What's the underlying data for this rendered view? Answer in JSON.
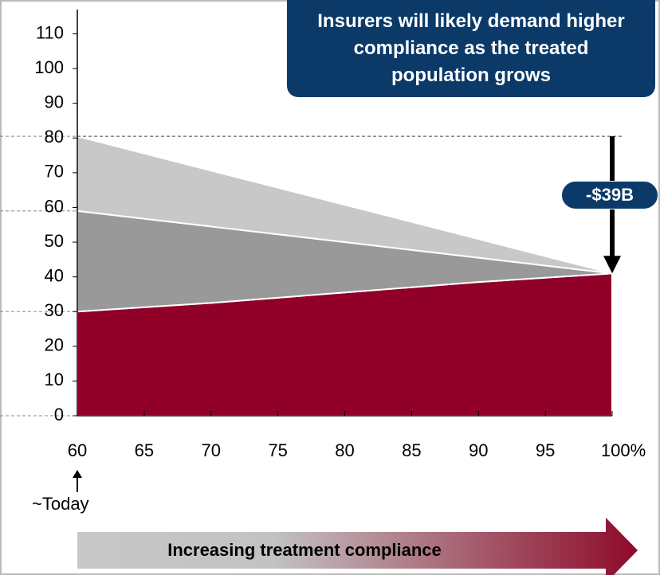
{
  "chart_data": {
    "type": "stacked_area",
    "x": [
      60,
      70,
      80,
      90,
      100
    ],
    "series": [
      {
        "color": "#900028",
        "values": [
          30,
          32.5,
          35.5,
          38.5,
          41
        ]
      },
      {
        "color": "#999999",
        "values": [
          29,
          22,
          14.5,
          7,
          0
        ]
      },
      {
        "color": "#c8c8c8",
        "values": [
          21.5,
          16.1,
          10.75,
          5.4,
          0
        ]
      }
    ],
    "xlim": [
      60,
      100
    ],
    "xticks": [
      60,
      65,
      70,
      75,
      80,
      85,
      90,
      95,
      {
        "value": 100,
        "label": "100%"
      }
    ],
    "ylim": [
      0,
      117
    ],
    "yticks": [
      0,
      10,
      20,
      30,
      40,
      50,
      60,
      70,
      80,
      90,
      100,
      110
    ],
    "annotations": [
      "Insurers will likely demand higher compliance as the treated population grows",
      "-$39B",
      "~Today",
      "Increasing treatment compliance"
    ]
  }
}
